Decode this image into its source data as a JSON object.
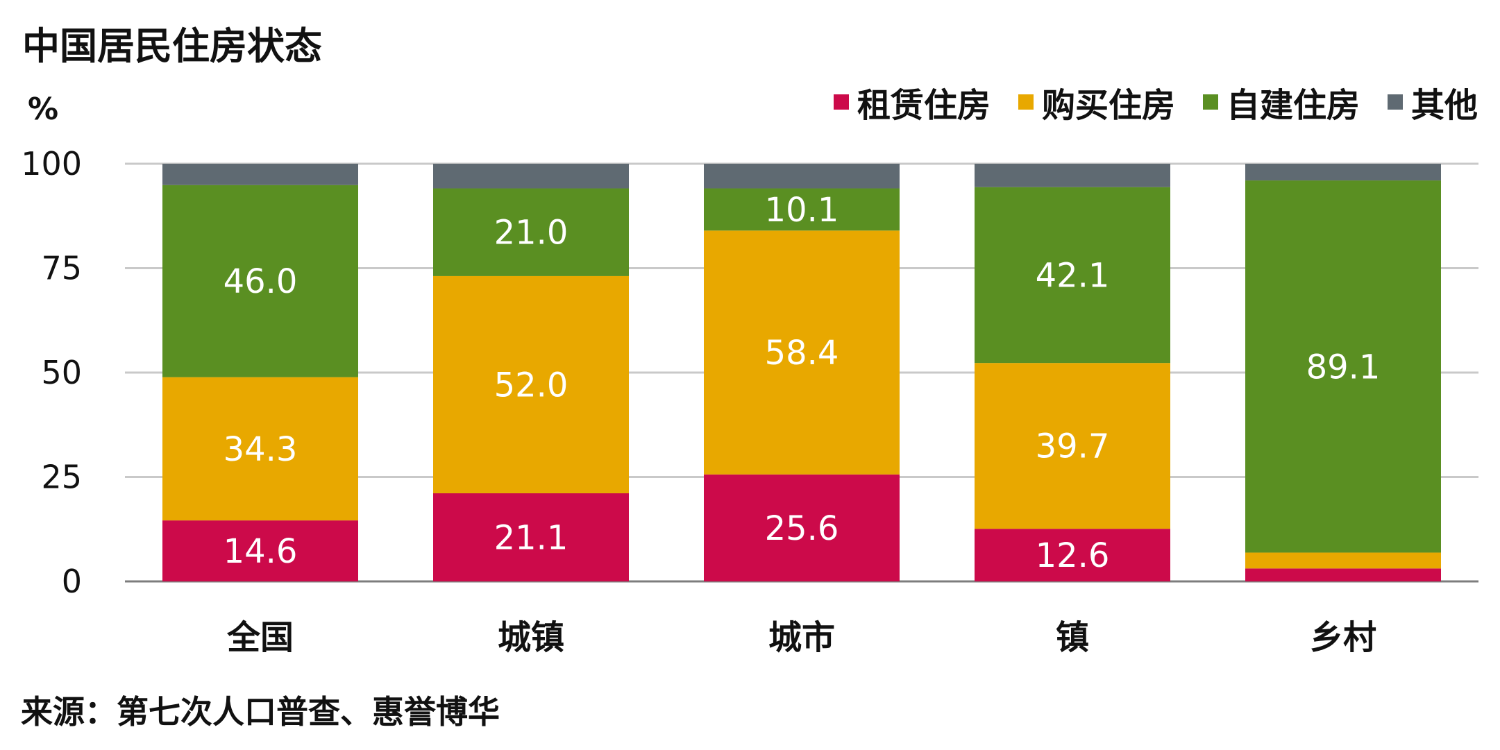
{
  "title": "中国居民住房状态",
  "unit": "%",
  "source": "来源：第七次人口普查、惠誉博华",
  "chart_data": {
    "type": "bar",
    "stacked": true,
    "categories": [
      "全国",
      "城镇",
      "城市",
      "镇",
      "乡村"
    ],
    "series": [
      {
        "name": "租赁住房",
        "color": "#cc0a4a",
        "values": [
          14.6,
          21.1,
          25.6,
          12.6,
          3.1
        ],
        "labels": [
          "14.6",
          "21.1",
          "25.6",
          "12.6",
          ""
        ]
      },
      {
        "name": "购买住房",
        "color": "#e8a800",
        "values": [
          34.3,
          52.0,
          58.4,
          39.7,
          3.8
        ],
        "labels": [
          "34.3",
          "52.0",
          "58.4",
          "39.7",
          "3.8"
        ]
      },
      {
        "name": "自建住房",
        "color": "#5a8f22",
        "values": [
          46.0,
          21.0,
          10.1,
          42.1,
          89.1
        ],
        "labels": [
          "46.0",
          "21.0",
          "10.1",
          "42.1",
          "89.1"
        ]
      },
      {
        "name": "其他",
        "color": "#5f6a72",
        "values": [
          5.1,
          5.9,
          5.9,
          5.6,
          4.0
        ],
        "labels": [
          "",
          "",
          "",
          "",
          ""
        ]
      }
    ],
    "ylim": [
      0,
      100
    ],
    "yticks": [
      0,
      25,
      50,
      75,
      100
    ],
    "grid": true,
    "legend_position": "top-right"
  }
}
